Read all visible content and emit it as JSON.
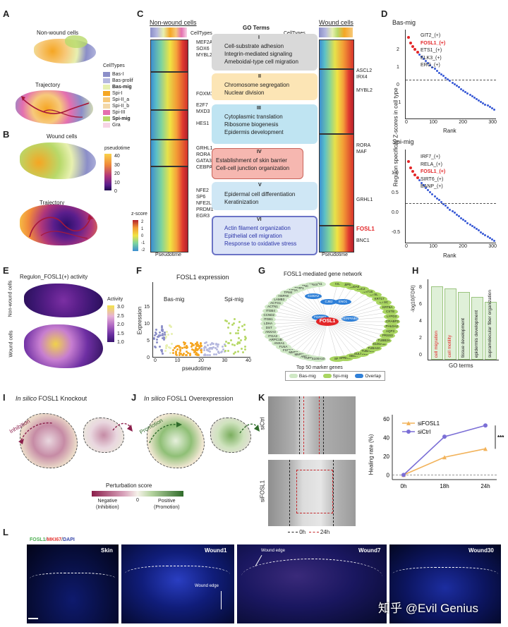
{
  "panels": {
    "A": "A",
    "B": "B",
    "C": "C",
    "D": "D",
    "E": "E",
    "F": "F",
    "G": "G",
    "H": "H",
    "I": "I",
    "J": "J",
    "K": "K",
    "L": "L"
  },
  "panelA": {
    "top_label": "Non-wound cells",
    "bottom_label": "Trajectory",
    "legend_title": "CellTypes",
    "legend_items": [
      {
        "label": "Bas-I",
        "color": "#8b8ec8",
        "bold": false
      },
      {
        "label": "Bas-prolif",
        "color": "#b6b9df",
        "bold": false
      },
      {
        "label": "Bas-mig",
        "color": "#e7f0b0",
        "bold": true
      },
      {
        "label": "Spi-I",
        "color": "#f5a623",
        "bold": false
      },
      {
        "label": "Spi-II_a",
        "color": "#f7c97b",
        "bold": false
      },
      {
        "label": "Spi-II_b",
        "color": "#f3d8a8",
        "bold": false
      },
      {
        "label": "Spi-III",
        "color": "#e46fb0",
        "bold": false
      },
      {
        "label": "Spi-mig",
        "color": "#b8d96a",
        "bold": true
      },
      {
        "label": "Gra",
        "color": "#f6d3e5",
        "bold": false
      }
    ]
  },
  "panelB": {
    "top_label": "Wound cells",
    "bottom_label": "Trajectory",
    "legend_title": "pseudotime",
    "ticks": [
      "40",
      "30",
      "20",
      "10",
      "0"
    ]
  },
  "panelC": {
    "left_title": "Non-wound cells",
    "right_title": "Wound cells",
    "celltypes_left": "CellTypes",
    "celltypes_right": "CellTypes",
    "go_title": "GO Terms",
    "left_genes": [
      [
        "MEF2A",
        "SOX6",
        "MYBL2"
      ],
      [
        "FOXM1"
      ],
      [
        "E2F7",
        "MXD3"
      ],
      [
        "HES1"
      ],
      [
        "GRHL1",
        "RORA",
        "GATA3",
        "CEBPA"
      ],
      [
        "NFE2",
        "SP6",
        "NFE2L3",
        "PRDM1",
        "EGR3"
      ]
    ],
    "right_genes": [
      [
        "ASCL2",
        "IRX4"
      ],
      [
        "MYBL2"
      ],
      [
        "RORA",
        "MAF"
      ],
      [
        "GRHL1"
      ],
      [
        "FOSL1"
      ],
      [
        "BNC1"
      ]
    ],
    "modules": [
      {
        "num": "I",
        "terms": [
          "Cell-substrate adhesion",
          "Integrin-mediated signaling",
          "Ameboidal-type cell migration"
        ],
        "color": "#d9d9d9"
      },
      {
        "num": "II",
        "terms": [
          "Chromosome segregation",
          "Nuclear division"
        ],
        "color": "#fce5b5"
      },
      {
        "num": "III",
        "terms": [
          "Cytoplasmic translation",
          "Ribosome biogenesis",
          "Epidermis development"
        ],
        "color": "#bfe4f2"
      },
      {
        "num": "IV",
        "terms": [
          "Establishment of skin barrier",
          "Cell-cell junction organization"
        ],
        "color": "#f6b7b0"
      },
      {
        "num": "V",
        "terms": [
          "Epidermal cell differentiation",
          "Keratinization"
        ],
        "color": "#cfe7f5"
      },
      {
        "num": "VI",
        "terms": [
          "Actin filament organization",
          "Epithelial cell migration",
          "Response to oxidative stress"
        ],
        "color": "#dbe3f7"
      }
    ],
    "zscore_label": "z-score",
    "zscore_ticks": [
      "2",
      "1",
      "0",
      "-1",
      "-2"
    ],
    "pseudotime_left": "Pseudotime",
    "pseudotime_right": "Pseudotime"
  },
  "panelD": {
    "top_title": "Bas-mig",
    "top_genes": [
      {
        "label": "GIT2_(+)",
        "red": false
      },
      {
        "label": "FOSL1_(+)",
        "red": true
      },
      {
        "label": "ETS1_(+)",
        "red": false
      },
      {
        "label": "ELK3_(+)",
        "red": false
      },
      {
        "label": "ERG_(+)",
        "red": false
      }
    ],
    "bottom_title": "Spi-mig",
    "bottom_genes": [
      {
        "label": "IRF7_(+)",
        "red": false
      },
      {
        "label": "RELA_(+)",
        "red": false
      },
      {
        "label": "FOSL1_(+)",
        "red": true
      },
      {
        "label": "SIRT6_(+)",
        "red": false
      },
      {
        "label": "BANP_(+)",
        "red": false
      }
    ],
    "ylabel": "Regulon specificity Z-scores in cell type",
    "xlabel": "Rank",
    "top_yticks": [
      "2",
      "1",
      "0",
      "-1"
    ],
    "bottom_yticks": [
      "1.0",
      "0.5",
      "0.0",
      "-0.5"
    ],
    "xticks": [
      "0",
      "100",
      "200",
      "300"
    ]
  },
  "panelE": {
    "title": "Regulon_FOSL1(+) activity",
    "top_side": "Non-wound cells",
    "bottom_side": "Wound cells",
    "legend_title": "Activity",
    "ticks": [
      "3.0",
      "2.5",
      "2.0",
      "1.5",
      "1.0"
    ]
  },
  "panelF": {
    "title": "FOSL1 expression",
    "ylabel": "Expression",
    "xlabel": "pseudotime",
    "left_tag": "Bas-mig",
    "right_tag": "Spi-mig",
    "yticks": [
      "15",
      "10",
      "5",
      "0"
    ],
    "xticks": [
      "0",
      "10",
      "20",
      "30",
      "40"
    ]
  },
  "panelG": {
    "title": "FOSL1-mediated gene network",
    "center": "FOSL1",
    "blue_nodes": [
      "S100A2",
      "CJB2",
      "ENO1",
      "FGFBP1",
      "SERPINB1"
    ],
    "left_nodes": [
      "PFN1",
      "TMSB4X",
      "TNC",
      "TIMP1",
      "MT2A",
      "TPM4",
      "HSPA8",
      "LAMB3",
      "ACTG1",
      "ACTN1",
      "ITGB4",
      "CCND2",
      "ITGB1",
      "LDHA",
      "DST",
      "ANXA3",
      "ITGA3",
      "ARPC1B",
      "ANXA1",
      "FLNA",
      "FSCN1",
      "MMP3",
      "MMP1",
      "AREG",
      "TNFRSF12A",
      "S100A10"
    ],
    "right_nodes": [
      "SFN",
      "SPRR1B",
      "SBSN",
      "SULT2B1",
      "TUBA1C",
      "TUBA4A",
      "S100A11",
      "TUBB2A",
      "PRSS3",
      "AQP3",
      "PHLDA2",
      "CRABP2",
      "LYPD3",
      "CSTB",
      "KRT6A",
      "CTSC",
      "KRT17",
      "CTSL",
      "KRT16",
      "DSC2",
      "S100A8",
      "FABP5",
      "IVL"
    ],
    "legend_title": "Top 50 marker genes",
    "legend": [
      {
        "label": "Bas-mig",
        "color": "#cfe8c5"
      },
      {
        "label": "Spi-mig",
        "color": "#a9d561"
      },
      {
        "label": "Overlap",
        "color": "#2f80d8"
      }
    ]
  },
  "panelH": {
    "ylabel": "-log10(FDR)",
    "yticks": [
      "8",
      "6",
      "4",
      "2",
      "0"
    ],
    "xlabel": "GO terms",
    "bars": [
      {
        "label": "cell migration",
        "value": 8.2,
        "red": true
      },
      {
        "label": "cell motility",
        "value": 8.0,
        "red": true
      },
      {
        "label": "tissue development",
        "value": 7.6,
        "red": false
      },
      {
        "label": "epidermis development",
        "value": 7.0,
        "red": false
      },
      {
        "label": "supramolecular fiber organization",
        "value": 6.5,
        "red": false
      }
    ]
  },
  "panelI": {
    "title_italic": "In silico",
    "title_rest": "FOSL1 Knockout",
    "arrow_label": "Inhibition"
  },
  "panelJ": {
    "title_italic": "In silico",
    "title_rest": "FOSL1 Overexpression",
    "arrow_label": "Promotion"
  },
  "perturb": {
    "title": "Perturbation score",
    "neg": "Negative",
    "neg2": "(Inhibition)",
    "zero": "0",
    "pos": "Positive",
    "pos2": "(Promotion)"
  },
  "panelK": {
    "row1": "siCtrl",
    "row2": "siFOSL1",
    "legend_0h": "0h",
    "legend_24h": "24h",
    "ylabel": "Healing rate (%)",
    "yticks": [
      "60",
      "40",
      "20",
      "0"
    ],
    "xticks": [
      "0h",
      "18h",
      "24h"
    ],
    "series": [
      {
        "name": "siFOSL1",
        "color": "#f2b35b",
        "values": [
          0,
          19,
          28
        ]
      },
      {
        "name": "siCtrl",
        "color": "#7b6fd6",
        "values": [
          0,
          41,
          53
        ]
      }
    ],
    "sig": "***"
  },
  "panelL": {
    "legend_a": "FOSL1",
    "legend_b": "MKI67",
    "legend_c": "DAPI",
    "legend_sep": "/",
    "tiles": [
      "Skin",
      "Wound1",
      "Wound7",
      "Wound30"
    ],
    "edge1": "Wound edge",
    "edge2": "Wound edge",
    "watermark": "知乎 @Evil Genius"
  }
}
